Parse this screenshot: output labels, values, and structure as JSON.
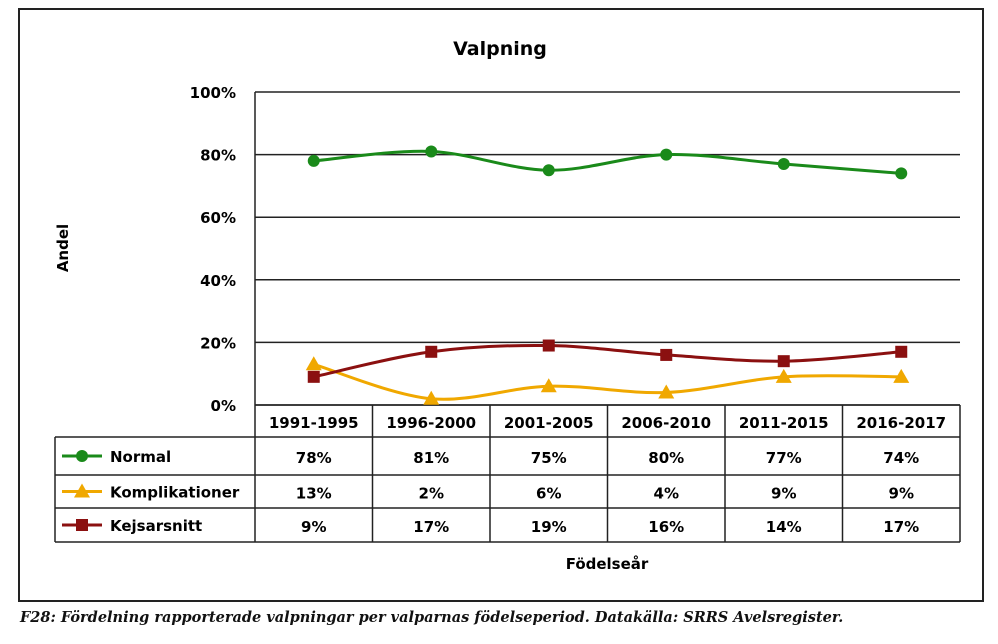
{
  "chart_data": {
    "type": "line",
    "title": "Valpning",
    "xlabel": "Födelseår",
    "ylabel": "Andel",
    "ylim": [
      0,
      100
    ],
    "yticks": [
      "0%",
      "20%",
      "40%",
      "60%",
      "80%",
      "100%"
    ],
    "grid": true,
    "legend": "data-table",
    "categories": [
      "1991-1995",
      "1996-2000",
      "2001-2005",
      "2006-2010",
      "2011-2015",
      "2016-2017"
    ],
    "series": [
      {
        "name": "Normal",
        "color": "#1a8a1a",
        "marker": "circle",
        "values": [
          78,
          81,
          75,
          80,
          77,
          74
        ],
        "labels": [
          "78%",
          "81%",
          "75%",
          "80%",
          "77%",
          "74%"
        ]
      },
      {
        "name": "Komplikationer",
        "color": "#f0a800",
        "marker": "triangle",
        "values": [
          13,
          2,
          6,
          4,
          9,
          9
        ],
        "labels": [
          "13%",
          "2%",
          "6%",
          "4%",
          "9%",
          "9%"
        ]
      },
      {
        "name": "Kejsarsnitt",
        "color": "#8b1010",
        "marker": "square",
        "values": [
          9,
          17,
          19,
          16,
          14,
          17
        ],
        "labels": [
          "9%",
          "17%",
          "19%",
          "16%",
          "14%",
          "17%"
        ]
      }
    ]
  },
  "caption": "F28: Fördelning rapporterade valpningar per valparnas födelseperiod. Datakälla: SRRS Avelsregister."
}
